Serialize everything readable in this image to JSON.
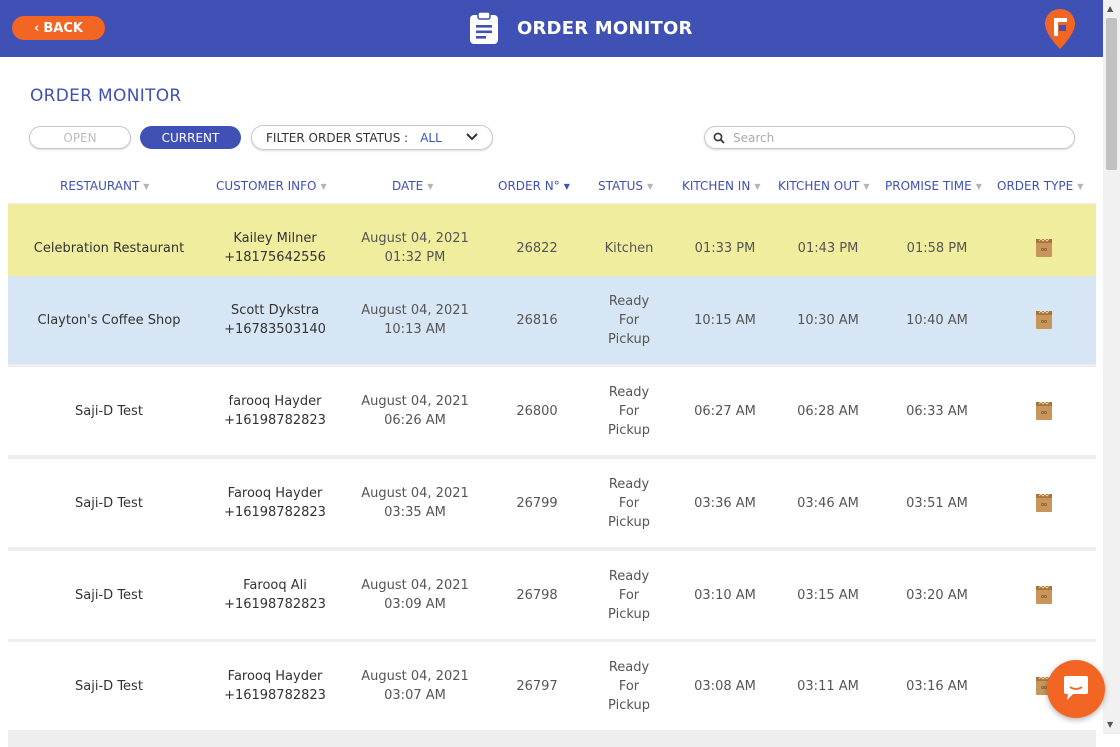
{
  "header": {
    "back_label": "BACK",
    "title": "ORDER MONITOR",
    "icon": "clipboard-icon",
    "logo": "brand-pin-logo"
  },
  "page_title": "ORDER MONITOR",
  "toggle": {
    "open_label": "OPEN",
    "current_label": "CURRENT",
    "active": "CURRENT"
  },
  "filter": {
    "label": "FILTER ORDER STATUS :",
    "value": "ALL"
  },
  "search": {
    "placeholder": "Search",
    "value": ""
  },
  "columns": [
    {
      "label": "RESTAURANT",
      "sort": "none"
    },
    {
      "label": "CUSTOMER INFO",
      "sort": "none"
    },
    {
      "label": "DATE",
      "sort": "none"
    },
    {
      "label": "ORDER N°",
      "sort": "desc"
    },
    {
      "label": "STATUS",
      "sort": "none"
    },
    {
      "label": "KITCHEN IN",
      "sort": "none"
    },
    {
      "label": "KITCHEN OUT",
      "sort": "none"
    },
    {
      "label": "PROMISE TIME",
      "sort": "none"
    },
    {
      "label": "ORDER TYPE",
      "sort": "none"
    }
  ],
  "orders": [
    {
      "restaurant": "Celebration Restaurant",
      "customer_name": "Kailey Milner",
      "customer_phone": "+18175642556",
      "date": "August 04, 2021",
      "time": "01:32 PM",
      "order_no": "26822",
      "status": [
        "Kitchen"
      ],
      "kitchen_in": "01:33 PM",
      "kitchen_out": "01:43 PM",
      "promise_time": "01:58 PM",
      "order_type": "takeout-bag-icon",
      "highlight": "yellow"
    },
    {
      "restaurant": "Clayton's Coffee Shop",
      "customer_name": "Scott Dykstra",
      "customer_phone": "+16783503140",
      "date": "August 04, 2021",
      "time": "10:13 AM",
      "order_no": "26816",
      "status": [
        "Ready",
        "For",
        "Pickup"
      ],
      "kitchen_in": "10:15 AM",
      "kitchen_out": "10:30 AM",
      "promise_time": "10:40 AM",
      "order_type": "takeout-bag-icon",
      "highlight": "blue"
    },
    {
      "restaurant": "Saji-D Test",
      "customer_name": "farooq Hayder",
      "customer_phone": "+16198782823",
      "date": "August 04, 2021",
      "time": "06:26 AM",
      "order_no": "26800",
      "status": [
        "Ready",
        "For",
        "Pickup"
      ],
      "kitchen_in": "06:27 AM",
      "kitchen_out": "06:28 AM",
      "promise_time": "06:33 AM",
      "order_type": "takeout-bag-icon",
      "highlight": "none"
    },
    {
      "restaurant": "Saji-D Test",
      "customer_name": "Farooq Hayder",
      "customer_phone": "+16198782823",
      "date": "August 04, 2021",
      "time": "03:35 AM",
      "order_no": "26799",
      "status": [
        "Ready",
        "For",
        "Pickup"
      ],
      "kitchen_in": "03:36 AM",
      "kitchen_out": "03:46 AM",
      "promise_time": "03:51 AM",
      "order_type": "takeout-bag-icon",
      "highlight": "none"
    },
    {
      "restaurant": "Saji-D Test",
      "customer_name": "Farooq Ali",
      "customer_phone": "+16198782823",
      "date": "August 04, 2021",
      "time": "03:09 AM",
      "order_no": "26798",
      "status": [
        "Ready",
        "For",
        "Pickup"
      ],
      "kitchen_in": "03:10 AM",
      "kitchen_out": "03:15 AM",
      "promise_time": "03:20 AM",
      "order_type": "takeout-bag-icon",
      "highlight": "none"
    },
    {
      "restaurant": "Saji-D Test",
      "customer_name": "Farooq Hayder",
      "customer_phone": "+16198782823",
      "date": "August 04, 2021",
      "time": "03:07 AM",
      "order_no": "26797",
      "status": [
        "Ready",
        "For",
        "Pickup"
      ],
      "kitchen_in": "03:08 AM",
      "kitchen_out": "03:11 AM",
      "promise_time": "03:16 AM",
      "order_type": "takeout-bag-icon",
      "highlight": "none"
    }
  ],
  "chat": {
    "icon": "chat-bubble-icon"
  },
  "colors": {
    "primary": "#3f51b5",
    "accent": "#f26522",
    "row_yellow": "#f0ee9e",
    "row_blue": "#d6e6f5"
  }
}
